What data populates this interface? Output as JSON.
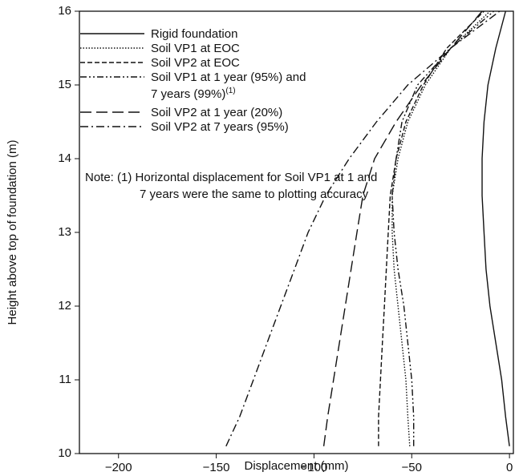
{
  "chart_data": {
    "type": "line",
    "x_label": "Displacement (mm)",
    "y_label": "Height above top of foundation (m)",
    "xlim": [
      -220,
      2
    ],
    "xticks": [
      {
        "value": -200,
        "label": "−200"
      },
      {
        "value": -150,
        "label": "−150"
      },
      {
        "value": -100,
        "label": "−100"
      },
      {
        "value": -50,
        "label": "−50"
      },
      0
    ],
    "ylim": [
      10,
      16
    ],
    "yticks": [
      10,
      11,
      12,
      13,
      14,
      15,
      16
    ],
    "y": [
      10.1,
      10.5,
      11,
      11.5,
      12,
      12.5,
      13,
      13.5,
      14,
      14.5,
      15,
      15.5,
      16
    ],
    "series": [
      {
        "name": "Rigid foundation",
        "color": "#111",
        "dash": "none",
        "values": [
          0,
          -2,
          -4,
          -7,
          -10,
          -12,
          -13,
          -14,
          -14,
          -13,
          -11,
          -7,
          -2
        ]
      },
      {
        "name": "Soil VP1 at EOC",
        "color": "#111",
        "dash": "1.5,2",
        "values": [
          -51,
          -52,
          -53,
          -55,
          -57,
          -59,
          -60,
          -60,
          -57,
          -52,
          -43,
          -30,
          -10
        ]
      },
      {
        "name": "Soil VP2 at EOC",
        "color": "#111",
        "dash": "6,3",
        "values": [
          -67,
          -67,
          -66,
          -65,
          -64,
          -63,
          -62,
          -61,
          -58,
          -53,
          -44,
          -32,
          -13
        ]
      },
      {
        "name": "Soil VP1 at 1 year (95%) and 7 years (99%)",
        "note_ref": "(1)",
        "color": "#111",
        "dash": "8,3,2,3,2,3",
        "values": [
          -49,
          -49,
          -50,
          -52,
          -54,
          -57,
          -59,
          -60,
          -58,
          -55,
          -47,
          -30,
          -8
        ]
      },
      {
        "name": "Soil VP2 at 1 year (20%)",
        "color": "#111",
        "dash": "14,6",
        "values": [
          -95,
          -93,
          -90,
          -87,
          -84,
          -81,
          -78,
          -75,
          -69,
          -58,
          -45,
          -30,
          -14
        ]
      },
      {
        "name": "Soil VP2 at 7 years (95%)",
        "color": "#111",
        "dash": "10,4,2,4",
        "values": [
          -145,
          -138,
          -131,
          -124,
          -117,
          -110,
          -103,
          -94,
          -82,
          -68,
          -52,
          -30,
          -5
        ]
      }
    ],
    "note": "Note: (1) Horizontal displacement for Soil VP1 at 1 and 7 years were the same to plotting accuracy"
  }
}
